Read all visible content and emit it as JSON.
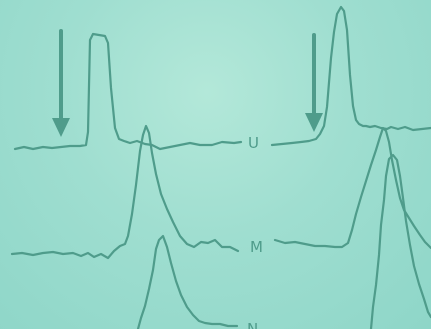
{
  "trace_labels": {
    "top": "U",
    "middle": "M",
    "bottom": "N"
  },
  "colors": {
    "background": "#a9e2d3",
    "trace": "#4f9c8b"
  },
  "icons": [
    "down-arrow-icon",
    "down-arrow-icon"
  ]
}
